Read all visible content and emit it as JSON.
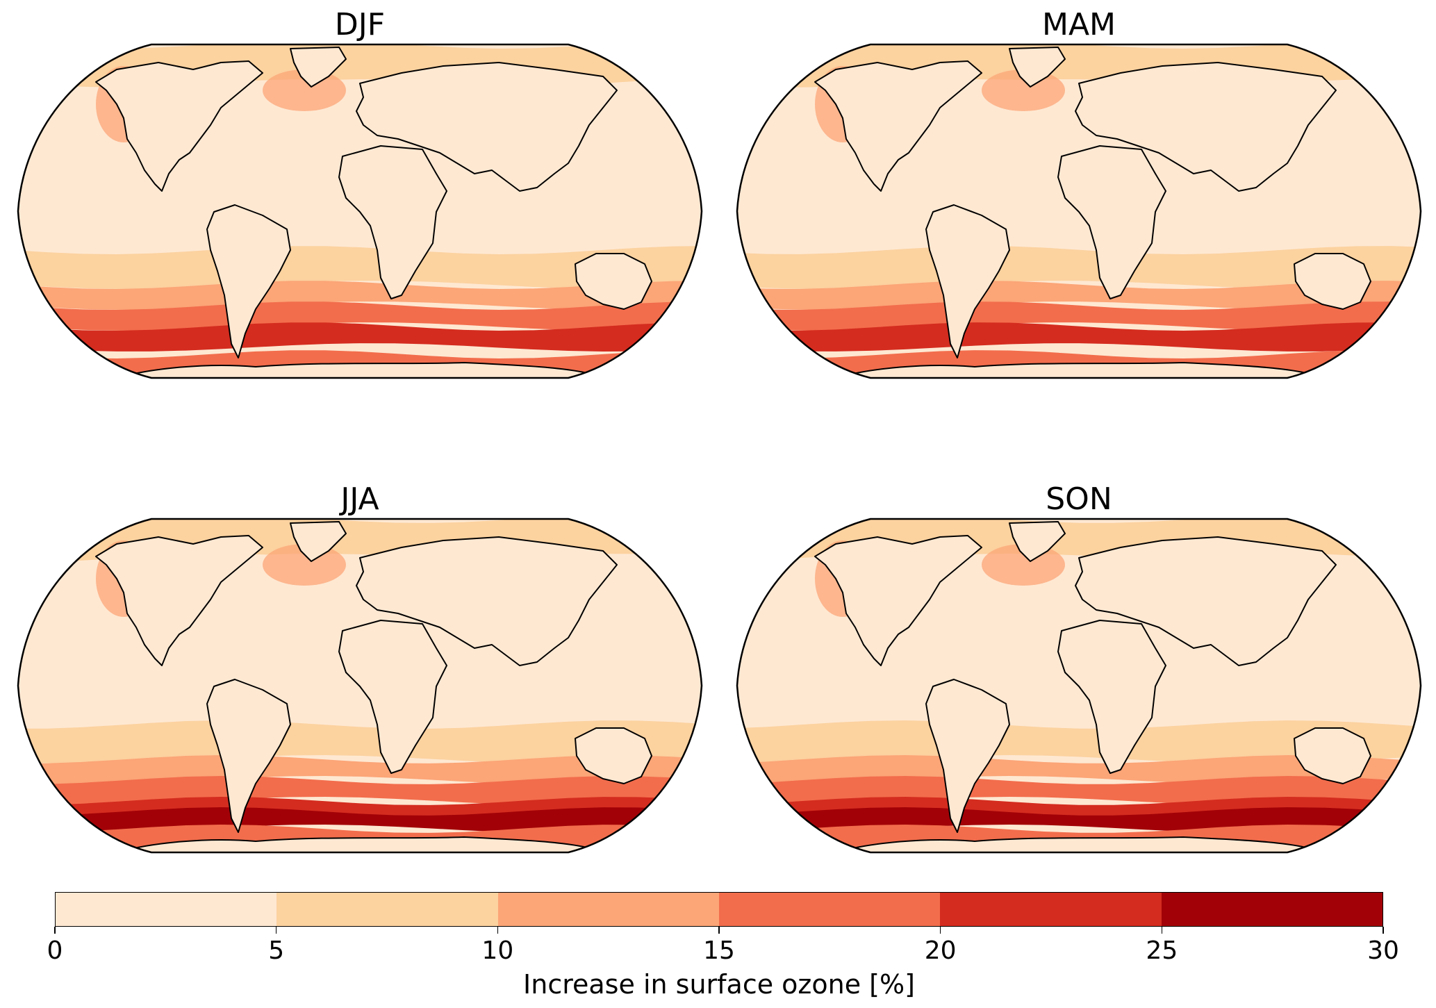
{
  "chart_data": {
    "type": "heatmap",
    "projection": "Robinson",
    "panels": [
      {
        "title": "DJF",
        "bands": {
          "south_max": 25,
          "north_max": 15
        }
      },
      {
        "title": "MAM",
        "bands": {
          "south_max": 25,
          "north_max": 15
        }
      },
      {
        "title": "JJA",
        "bands": {
          "south_max": 30,
          "north_max": 15
        }
      },
      {
        "title": "SON",
        "bands": {
          "south_max": 30,
          "north_max": 15
        }
      }
    ],
    "colorbar": {
      "label": "Increase in surface ozone [%]",
      "range": [
        0,
        30
      ],
      "levels": [
        0,
        5,
        10,
        15,
        20,
        25,
        30
      ],
      "tick_labels": [
        "0",
        "5",
        "10",
        "15",
        "20",
        "25",
        "30"
      ],
      "colors": [
        "#fee8d2",
        "#fcd29f",
        "#fca577",
        "#f26d4c",
        "#d42c1f",
        "#a20207"
      ]
    }
  }
}
